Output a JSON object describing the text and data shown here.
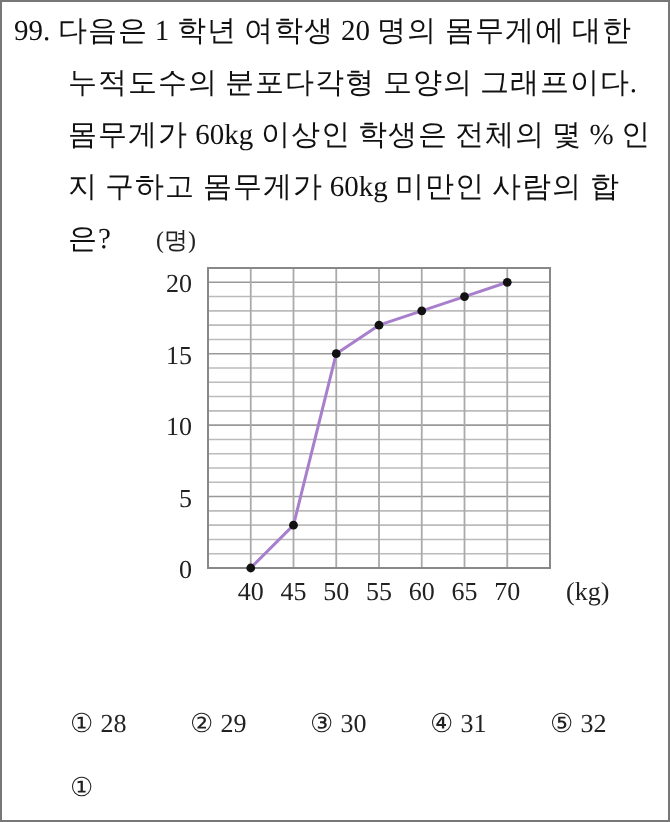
{
  "chart_data": {
    "type": "line",
    "title": "99. 다음은 1 학년 여학생 20 명의 몸무게에 대한 누적도수의 분포다각형 모양의 그래프이다. 몸무게가 60kg 이상인 학생은 전체의 몇 % 인지 구하고 몸무게가 60kg 미만인 사람의 합은?",
    "xlabel": "(kg)",
    "ylabel": "(명)",
    "annotations": [
      "① 28",
      "② 29",
      "③ 30",
      "④ 31",
      "⑤ 32",
      "①"
    ],
    "x": [
      40,
      45,
      50,
      55,
      60,
      65,
      70
    ],
    "series": [
      {
        "color": "#a77fcc",
        "values": [
          0,
          3,
          15,
          17,
          18,
          19,
          20
        ]
      }
    ],
    "xlim": [
      35,
      75
    ],
    "ylim": [
      0,
      21
    ],
    "xticks": [
      40,
      45,
      50,
      55,
      60,
      65,
      70
    ],
    "yticks": [
      0,
      {
        "value": 1,
        "label": null
      },
      {
        "value": 2,
        "label": null
      },
      {
        "value": 3,
        "label": null
      },
      {
        "value": 4,
        "label": null
      },
      5,
      {
        "value": 6,
        "label": null
      },
      {
        "value": 7,
        "label": null
      },
      {
        "value": 8,
        "label": null
      },
      {
        "value": 9,
        "label": null
      },
      10,
      {
        "value": 11,
        "label": null
      },
      {
        "value": 12,
        "label": null
      },
      {
        "value": 13,
        "label": null
      },
      {
        "value": 14,
        "label": null
      },
      15,
      {
        "value": 16,
        "label": null
      },
      {
        "value": 17,
        "label": null
      },
      {
        "value": 18,
        "label": null
      },
      {
        "value": 19,
        "label": null
      },
      20
    ],
    "grid": true,
    "marker": "circle"
  }
}
